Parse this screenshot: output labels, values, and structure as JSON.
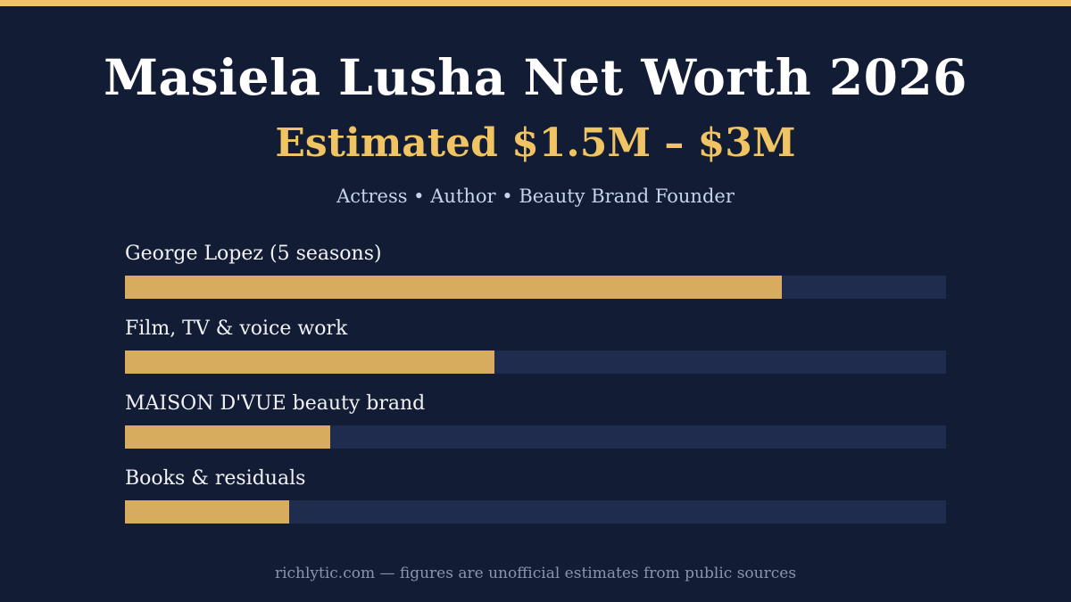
{
  "colors": {
    "background": "#121d35",
    "accent": "#f0c463",
    "bar_fill": "#d8ac5e",
    "bar_track": "#1f2c4d"
  },
  "header": {
    "title": "Masiela Lusha Net Worth 2026",
    "subtitle": "Estimated $1.5M – $3M",
    "tagline": "Actress • Author • Beauty Brand Founder"
  },
  "chart_data": {
    "type": "bar",
    "orientation": "horizontal",
    "categories": [
      "George Lopez (5 seasons)",
      "Film, TV & voice work",
      "MAISON D'VUE beauty brand",
      "Books & residuals"
    ],
    "values": [
      0.8,
      0.45,
      0.25,
      0.2
    ],
    "value_scale": "fraction of full bar",
    "xlim": [
      0,
      1
    ],
    "grid": false,
    "legend": "none"
  },
  "footer": {
    "text": "richlytic.com — figures are unofficial estimates from public sources"
  }
}
